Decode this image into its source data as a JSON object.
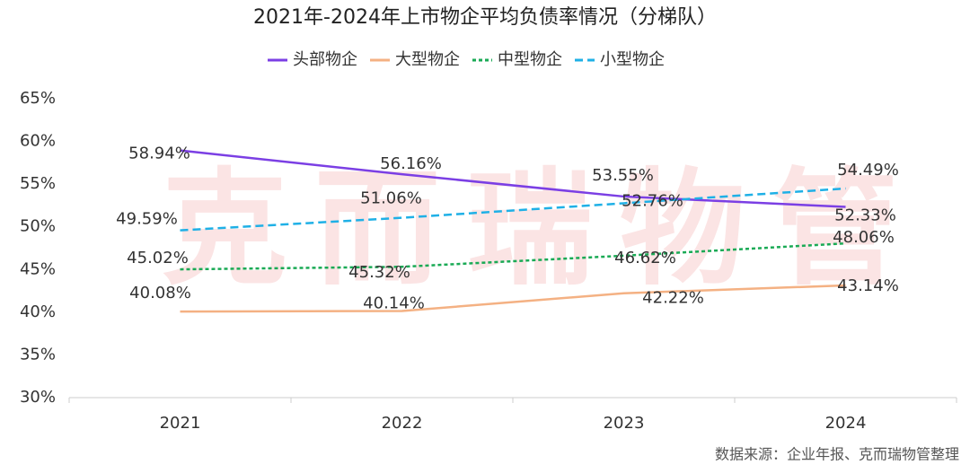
{
  "chart_data": {
    "type": "line",
    "title": "2021年-2024年上市物企平均负债率情况（分梯队）",
    "categories": [
      "2021",
      "2022",
      "2023",
      "2024"
    ],
    "series": [
      {
        "name": "头部物企",
        "color": "#7b3fe4",
        "dash": "solid",
        "values": [
          58.94,
          56.16,
          53.55,
          52.33
        ],
        "value_labels": [
          "58.94%",
          "56.16%",
          "53.55%",
          "52.33%"
        ]
      },
      {
        "name": "大型物企",
        "color": "#f4b183",
        "dash": "solid",
        "values": [
          40.08,
          40.14,
          42.22,
          43.14
        ],
        "value_labels": [
          "40.08%",
          "40.14%",
          "42.22%",
          "43.14%"
        ]
      },
      {
        "name": "中型物企",
        "color": "#1aaa55",
        "dash": "dotted",
        "values": [
          45.02,
          45.32,
          46.62,
          48.06
        ],
        "value_labels": [
          "45.02%",
          "45.32%",
          "46.62%",
          "48.06%"
        ]
      },
      {
        "name": "小型物企",
        "color": "#1fb0e6",
        "dash": "dashed",
        "values": [
          49.59,
          51.06,
          52.76,
          54.49
        ],
        "value_labels": [
          "49.59%",
          "51.06%",
          "52.76%",
          "54.49%"
        ]
      }
    ],
    "ylim": [
      30,
      65
    ],
    "yticks": [
      {
        "value": 30,
        "label": "30%"
      },
      {
        "value": 35,
        "label": "35%"
      },
      {
        "value": 40,
        "label": "40%"
      },
      {
        "value": 45,
        "label": "45%"
      },
      {
        "value": 50,
        "label": "50%"
      },
      {
        "value": 55,
        "label": "55%"
      },
      {
        "value": 60,
        "label": "60%"
      },
      {
        "value": 65,
        "label": "65%"
      }
    ],
    "legend": "top",
    "watermark": "克而瑞物管",
    "source": "数据来源：企业年报、克而瑞物管整理"
  }
}
